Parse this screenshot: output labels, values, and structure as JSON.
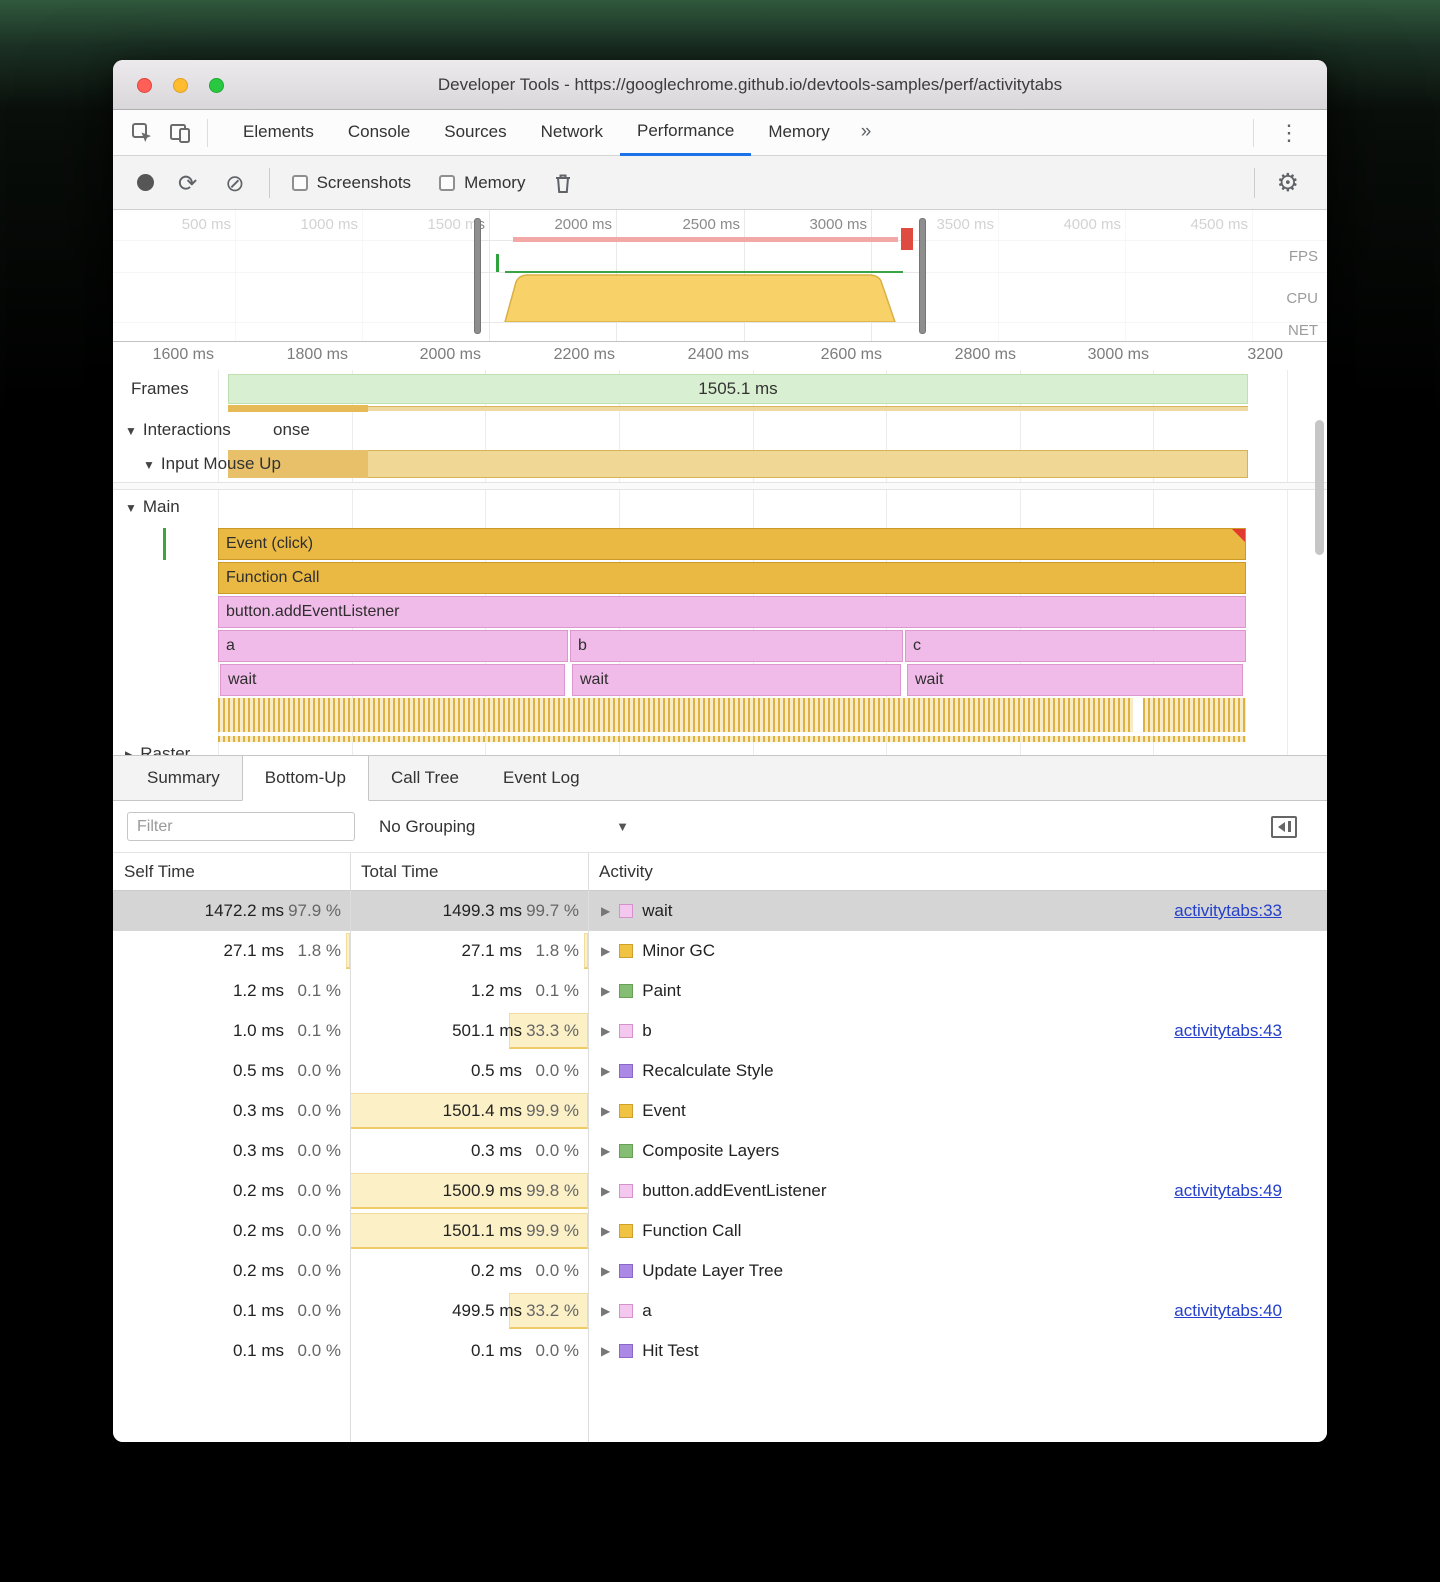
{
  "window": {
    "title": "Developer Tools - https://googlechrome.github.io/devtools-samples/perf/activitytabs"
  },
  "icons": {
    "disclosure_open": "▼",
    "disclosure_closed": "▶",
    "more_tabs": "»",
    "overflow_menu": "⋮",
    "reload": "⟳",
    "clear": "⊘",
    "settings": "⚙",
    "dropdown_arrow": "▼"
  },
  "tabs": {
    "items": [
      "Elements",
      "Console",
      "Sources",
      "Network",
      "Performance",
      "Memory"
    ],
    "active": "Performance"
  },
  "toolbar": {
    "screenshots_label": "Screenshots",
    "memory_label": "Memory"
  },
  "overview": {
    "ruler": [
      "500 ms",
      "1000 ms",
      "1500 ms",
      "2000 ms",
      "2500 ms",
      "3000 ms",
      "3500 ms",
      "4000 ms",
      "4500 ms"
    ],
    "tracks": [
      "FPS",
      "CPU",
      "NET"
    ]
  },
  "flame": {
    "ruler": [
      "1600 ms",
      "1800 ms",
      "2000 ms",
      "2200 ms",
      "2400 ms",
      "2600 ms",
      "2800 ms",
      "3000 ms",
      "3200"
    ],
    "frames_label": "Frames",
    "frames_duration": "1505.1 ms",
    "interactions_label": "Interactions",
    "interactions_clipped": "onse",
    "input_row_label": "Input Mouse Up",
    "main_label": "Main",
    "raster_label": "Raster",
    "bars": {
      "event": "Event (click)",
      "function_call": "Function Call",
      "listener": "button.addEventListener",
      "abc": [
        "a",
        "b",
        "c"
      ],
      "wait": [
        "wait",
        "wait",
        "wait"
      ]
    }
  },
  "bottom": {
    "tabs": [
      "Summary",
      "Bottom-Up",
      "Call Tree",
      "Event Log"
    ],
    "active_tab": "Bottom-Up",
    "filter_placeholder": "Filter",
    "grouping": "No Grouping",
    "columns": [
      "Self Time",
      "Total Time",
      "Activity"
    ],
    "rows": [
      {
        "self": "1472.2 ms",
        "self_pct": "97.9 %",
        "self_heat": 0.979,
        "total": "1499.3 ms",
        "total_pct": "99.7 %",
        "total_heat": 0.997,
        "color": "pink",
        "label": "wait",
        "link": "activitytabs:33",
        "selected": true
      },
      {
        "self": "27.1 ms",
        "self_pct": "1.8 %",
        "self_heat": 0.018,
        "total": "27.1 ms",
        "total_pct": "1.8 %",
        "total_heat": 0.018,
        "color": "yellow",
        "label": "Minor GC",
        "link": "",
        "selected": false
      },
      {
        "self": "1.2 ms",
        "self_pct": "0.1 %",
        "self_heat": 0.001,
        "total": "1.2 ms",
        "total_pct": "0.1 %",
        "total_heat": 0.001,
        "color": "green",
        "label": "Paint",
        "link": "",
        "selected": false
      },
      {
        "self": "1.0 ms",
        "self_pct": "0.1 %",
        "self_heat": 0.001,
        "total": "501.1 ms",
        "total_pct": "33.3 %",
        "total_heat": 0.333,
        "color": "pink",
        "label": "b",
        "link": "activitytabs:43",
        "selected": false
      },
      {
        "self": "0.5 ms",
        "self_pct": "0.0 %",
        "self_heat": 0,
        "total": "0.5 ms",
        "total_pct": "0.0 %",
        "total_heat": 0,
        "color": "purple",
        "label": "Recalculate Style",
        "link": "",
        "selected": false
      },
      {
        "self": "0.3 ms",
        "self_pct": "0.0 %",
        "self_heat": 0,
        "total": "1501.4 ms",
        "total_pct": "99.9 %",
        "total_heat": 0.999,
        "color": "yellow",
        "label": "Event",
        "link": "",
        "selected": false
      },
      {
        "self": "0.3 ms",
        "self_pct": "0.0 %",
        "self_heat": 0,
        "total": "0.3 ms",
        "total_pct": "0.0 %",
        "total_heat": 0,
        "color": "green",
        "label": "Composite Layers",
        "link": "",
        "selected": false
      },
      {
        "self": "0.2 ms",
        "self_pct": "0.0 %",
        "self_heat": 0,
        "total": "1500.9 ms",
        "total_pct": "99.8 %",
        "total_heat": 0.998,
        "color": "pink",
        "label": "button.addEventListener",
        "link": "activitytabs:49",
        "selected": false
      },
      {
        "self": "0.2 ms",
        "self_pct": "0.0 %",
        "self_heat": 0,
        "total": "1501.1 ms",
        "total_pct": "99.9 %",
        "total_heat": 0.999,
        "color": "yellow",
        "label": "Function Call",
        "link": "",
        "selected": false
      },
      {
        "self": "0.2 ms",
        "self_pct": "0.0 %",
        "self_heat": 0,
        "total": "0.2 ms",
        "total_pct": "0.0 %",
        "total_heat": 0,
        "color": "purple",
        "label": "Update Layer Tree",
        "link": "",
        "selected": false
      },
      {
        "self": "0.1 ms",
        "self_pct": "0.0 %",
        "self_heat": 0,
        "total": "499.5 ms",
        "total_pct": "33.2 %",
        "total_heat": 0.332,
        "color": "pink",
        "label": "a",
        "link": "activitytabs:40",
        "selected": false
      },
      {
        "self": "0.1 ms",
        "self_pct": "0.0 %",
        "self_heat": 0,
        "total": "0.1 ms",
        "total_pct": "0.0 %",
        "total_heat": 0,
        "color": "purple",
        "label": "Hit Test",
        "link": "",
        "selected": false
      }
    ]
  }
}
